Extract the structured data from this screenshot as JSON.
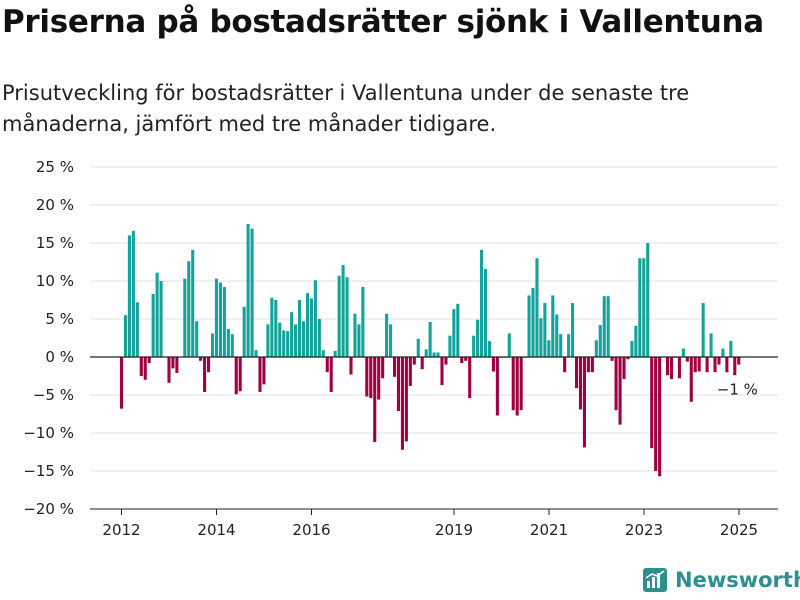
{
  "title": "Priserna på bostadsrätter sjönk i Vallentuna",
  "subtitle": "Prisutveckling för bostadsrätter i Vallentuna under de senaste tre månaderna, jämfört med tre månader tidigare.",
  "brand": {
    "name": "Newsworthy",
    "icon": "newsworthy-logo-icon",
    "color": "#2f8f8f"
  },
  "colors": {
    "positive": "#13a39a",
    "negative": "#a0003f"
  },
  "chart_data": {
    "type": "bar",
    "title": "Priserna på bostadsrätter sjönk i Vallentuna",
    "subtitle": "Prisutveckling för bostadsrätter i Vallentuna under de senaste tre månaderna, jämfört med tre månader tidigare.",
    "xlabel": "",
    "ylabel": "",
    "y_unit": "%",
    "ylim": [
      -20,
      25
    ],
    "yticks": [
      25,
      20,
      15,
      10,
      5,
      0,
      -5,
      -10,
      -15,
      -20
    ],
    "ytick_labels": [
      "25 %",
      "20 %",
      "15 %",
      "10 %",
      "5 %",
      "0 %",
      "−5 %",
      "−10 %",
      "−15 %",
      "−20 %"
    ],
    "xticks": [
      {
        "x": 2012.0,
        "label": "2012"
      },
      {
        "x": 2014.0,
        "label": "2014"
      },
      {
        "x": 2016.0,
        "label": "2016"
      },
      {
        "x": 2019.0,
        "label": "2019"
      },
      {
        "x": 2021.0,
        "label": "2021"
      },
      {
        "x": 2023.0,
        "label": "2023"
      },
      {
        "x": 2025.0,
        "label": "2025"
      }
    ],
    "x_start": 2012.0,
    "x_step": 0.0833,
    "values": [
      -6.8,
      5.5,
      16,
      16.6,
      7.2,
      -2.5,
      -3,
      -0.8,
      8.3,
      11.1,
      10,
      0,
      -3.4,
      -1.5,
      -2.1,
      0,
      10.3,
      12.6,
      14.1,
      4.7,
      -0.5,
      -4.6,
      -2,
      3.1,
      10.3,
      9.8,
      9.2,
      3.7,
      3,
      -4.9,
      -4.5,
      6.6,
      17.5,
      16.9,
      0.9,
      -4.6,
      -3.6,
      4.3,
      7.8,
      7.5,
      4.5,
      3.5,
      3.4,
      5.9,
      4.3,
      7.5,
      4.7,
      8.4,
      7.7,
      10.1,
      5,
      0.9,
      -2,
      -4.6,
      0.8,
      10.7,
      12.1,
      10.5,
      -2.3,
      5.7,
      4.3,
      9.2,
      -5.2,
      -5.4,
      -11.2,
      -5.6,
      -2.8,
      5.7,
      4.3,
      -2.6,
      -7.1,
      -12.2,
      -11.1,
      -3.8,
      -1,
      2.4,
      -1.6,
      1,
      4.6,
      0.6,
      0.6,
      -3.7,
      -1,
      2.8,
      6.3,
      7,
      -0.8,
      -0.5,
      -5.4,
      2.8,
      4.9,
      14.1,
      11.6,
      2.1,
      -1.9,
      -7.7,
      -0.1,
      -0.1,
      3.1,
      -7,
      -7.7,
      -7,
      -0.1,
      8.1,
      9.1,
      13,
      5.1,
      7.1,
      2.2,
      8.1,
      5.6,
      3,
      -2,
      3,
      7.1,
      -4.1,
      -6.9,
      -11.9,
      -2,
      -2,
      2.2,
      4.2,
      8,
      8,
      -0.5,
      -7,
      -8.9,
      -2.9,
      -0.3,
      2.1,
      4.1,
      13,
      13,
      15,
      -12,
      -15,
      -15.7,
      0,
      -2.4,
      -2.9,
      -0.1,
      -2.8,
      1.1,
      -0.6,
      -5.9,
      -2,
      -1.9,
      7.1,
      -2,
      3.1,
      -2,
      -1,
      1.1,
      -2,
      2.1,
      -2.4,
      -1
    ],
    "annotations": [
      {
        "text": "−1 %",
        "target": "last_bar"
      }
    ]
  }
}
